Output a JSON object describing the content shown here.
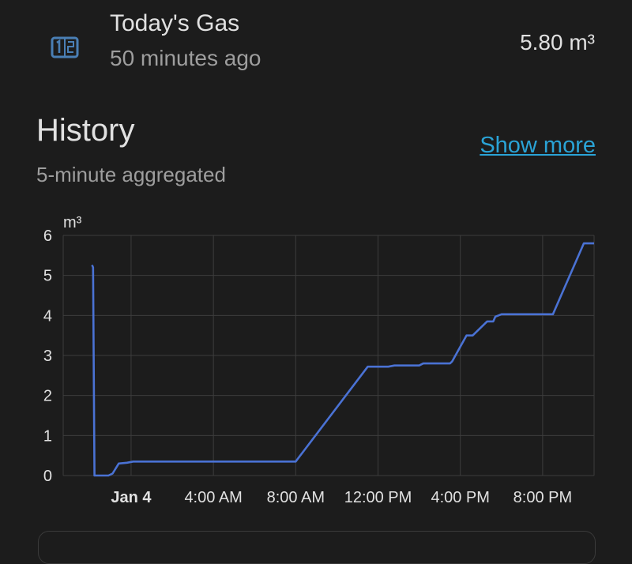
{
  "entity": {
    "name": "Today's Gas",
    "last_changed": "50 minutes ago",
    "value": "5.80 m³",
    "icon": "numeric-icon"
  },
  "history": {
    "title": "History",
    "subtitle": "5-minute aggregated",
    "show_more_label": "Show more"
  },
  "colors": {
    "accent": "#2aa3d6",
    "series": "#4a72d4",
    "icon": "#4a7fb5",
    "background": "#1c1c1c"
  },
  "chart_data": {
    "type": "line",
    "ylabel": "m³",
    "ylim": [
      0,
      6
    ],
    "yticks": [
      "0",
      "1",
      "2",
      "3",
      "4",
      "5",
      "6"
    ],
    "xrange_hours": [
      -3.3,
      22.5
    ],
    "xticks": [
      {
        "label": "Jan 4",
        "hour": 0,
        "bold": true
      },
      {
        "label": "4:00 AM",
        "hour": 4
      },
      {
        "label": "8:00 AM",
        "hour": 8
      },
      {
        "label": "12:00 PM",
        "hour": 12
      },
      {
        "label": "4:00 PM",
        "hour": 16
      },
      {
        "label": "8:00 PM",
        "hour": 20
      }
    ],
    "grid": true,
    "series": [
      {
        "points": [
          [
            -1.9,
            5.26
          ],
          [
            -1.85,
            5.2
          ],
          [
            -1.78,
            0.0
          ],
          [
            -1.1,
            0.0
          ],
          [
            -0.9,
            0.05
          ],
          [
            -0.6,
            0.3
          ],
          [
            -0.2,
            0.32
          ],
          [
            0.1,
            0.35
          ],
          [
            8.0,
            0.35
          ],
          [
            11.5,
            2.72
          ],
          [
            12.5,
            2.72
          ],
          [
            12.8,
            2.75
          ],
          [
            14.0,
            2.75
          ],
          [
            14.2,
            2.8
          ],
          [
            15.5,
            2.8
          ],
          [
            15.6,
            2.85
          ],
          [
            16.3,
            3.5
          ],
          [
            16.6,
            3.5
          ],
          [
            17.3,
            3.85
          ],
          [
            17.6,
            3.85
          ],
          [
            17.7,
            3.97
          ],
          [
            18.0,
            4.03
          ],
          [
            20.5,
            4.03
          ],
          [
            22.0,
            5.8
          ],
          [
            22.5,
            5.8
          ]
        ]
      }
    ]
  }
}
